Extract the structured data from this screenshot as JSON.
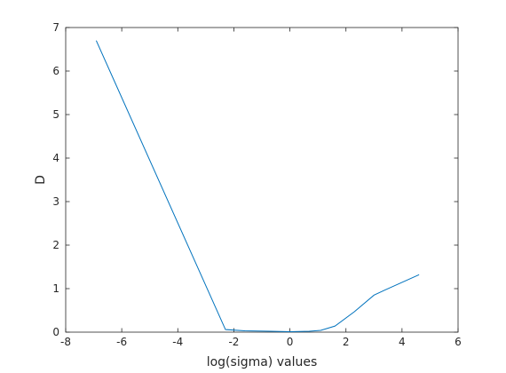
{
  "chart_data": {
    "type": "line",
    "title": "",
    "xlabel": "log(sigma) values",
    "ylabel": "D",
    "xlim": [
      -8,
      6
    ],
    "ylim": [
      0,
      7
    ],
    "xticks": [
      -8,
      -6,
      -4,
      -2,
      0,
      2,
      4,
      6
    ],
    "yticks": [
      0,
      1,
      2,
      3,
      4,
      5,
      6,
      7
    ],
    "grid": false,
    "legend": "none",
    "series": [
      {
        "color": "#0072BD",
        "x": [
          -6.91,
          -2.3,
          -1.61,
          -0.69,
          0.0,
          0.69,
          1.1,
          1.61,
          2.3,
          3.0,
          3.4,
          4.61
        ],
        "y": [
          6.7,
          0.06,
          0.03,
          0.02,
          0.01,
          0.02,
          0.04,
          0.14,
          0.47,
          0.85,
          0.97,
          1.32
        ]
      }
    ]
  }
}
